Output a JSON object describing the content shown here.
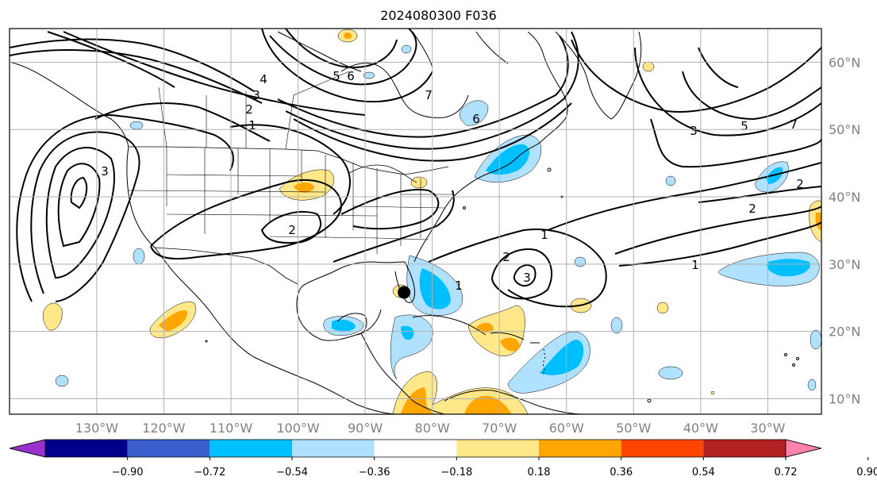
{
  "title": "2024080300 F036",
  "map": {
    "projection": "equirectangular",
    "lon_range": [
      -143,
      -22
    ],
    "lat_range": [
      7.7,
      65
    ],
    "gridlines": true,
    "lon_labels": [
      "130°W",
      "120°W",
      "110°W",
      "100°W",
      "90°W",
      "80°W",
      "70°W",
      "60°W",
      "50°W",
      "40°W",
      "30°W"
    ],
    "lon_values": [
      -130,
      -120,
      -110,
      -100,
      -90,
      -80,
      -70,
      -60,
      -50,
      -40,
      -30
    ],
    "lat_labels": [
      "60°N",
      "50°N",
      "40°N",
      "30°N",
      "20°N",
      "10°N"
    ],
    "lat_values": [
      60,
      50,
      40,
      30,
      20,
      10
    ],
    "marker": {
      "lon": -84.2,
      "lat": 25.8,
      "color": "#000000"
    },
    "contour_labels": [
      "1",
      "2",
      "3",
      "4",
      "5",
      "6",
      "7",
      "1",
      "2",
      "3",
      "1",
      "1",
      "2",
      "6",
      "3",
      "5",
      "7",
      "2",
      "3",
      "2"
    ]
  },
  "colorbar": {
    "levels": [
      "-0.90",
      "-0.72",
      "-0.54",
      "-0.36",
      "-0.18",
      "0.18",
      "0.36",
      "0.54",
      "0.72",
      "0.90"
    ],
    "colors": [
      "#9932cc",
      "#00008b",
      "#3a5fcd",
      "#00bfff",
      "#b0e2ff",
      "#ffffff",
      "#ffe78a",
      "#ffa500",
      "#ff4500",
      "#b22222",
      "#ff82ab"
    ],
    "extend": "both"
  }
}
